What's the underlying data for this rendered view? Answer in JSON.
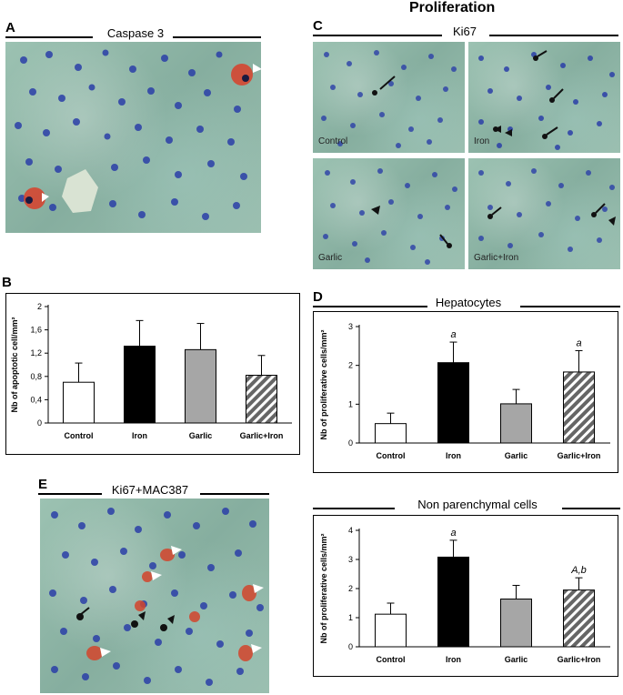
{
  "title_proliferation": "Proliferation",
  "panels": {
    "A": {
      "letter": "A",
      "caption": "Caspase 3"
    },
    "B": {
      "letter": "B"
    },
    "C": {
      "letter": "C",
      "caption": "Ki67",
      "sub_labels": [
        "Control",
        "Iron",
        "Garlic",
        "Garlic+Iron"
      ]
    },
    "D": {
      "letter": "D",
      "caption_top": "Hepatocytes",
      "caption_bottom": "Non parenchymal cells"
    },
    "E": {
      "letter": "E",
      "caption": "Ki67+MAC387"
    }
  },
  "colors": {
    "control": "#ffffff",
    "iron": "#000000",
    "garlic": "#a6a6a6",
    "garlic_iron": "hatched-gray"
  },
  "chart_data": [
    {
      "type": "bar",
      "panel": "B",
      "categories": [
        "Control",
        "Iron",
        "Garlic",
        "Garlic+Iron"
      ],
      "values": [
        0.7,
        1.32,
        1.26,
        0.82
      ],
      "errors": [
        0.33,
        0.44,
        0.45,
        0.34
      ],
      "ylabel": "Nb of apoptotic cell/mm²",
      "ylim": [
        0,
        2
      ],
      "yticks": [
        "0",
        "0,4",
        "0,8",
        "1,2",
        "1,6",
        "2"
      ],
      "annotations": [
        "",
        "",
        "",
        ""
      ]
    },
    {
      "type": "bar",
      "panel": "D-top",
      "categories": [
        "Control",
        "Iron",
        "Garlic",
        "Garlic+Iron"
      ],
      "values": [
        0.5,
        2.07,
        1.01,
        1.83
      ],
      "errors": [
        0.27,
        0.53,
        0.37,
        0.55
      ],
      "ylabel": "Nb of proliferative cells/mm²",
      "ylim": [
        0,
        3
      ],
      "yticks": [
        "0",
        "1",
        "2",
        "3"
      ],
      "annotations": [
        "",
        "a",
        "",
        "a"
      ]
    },
    {
      "type": "bar",
      "panel": "D-bottom",
      "categories": [
        "Control",
        "Iron",
        "Garlic",
        "Garlic+Iron"
      ],
      "values": [
        1.12,
        3.08,
        1.64,
        1.95
      ],
      "errors": [
        0.38,
        0.58,
        0.47,
        0.42
      ],
      "ylabel": "Nb of proliferative cells/mm²",
      "ylim": [
        0,
        4
      ],
      "yticks": [
        "0",
        "1",
        "2",
        "3",
        "4"
      ],
      "annotations": [
        "",
        "a",
        "",
        "A,b"
      ]
    }
  ]
}
